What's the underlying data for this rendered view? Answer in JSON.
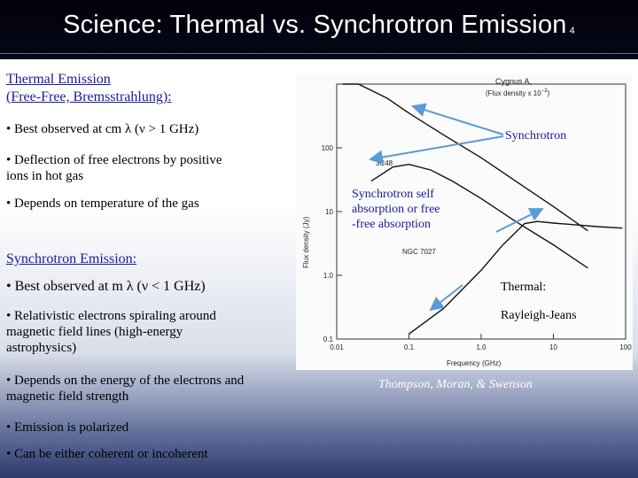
{
  "slide": {
    "title": "Science: Thermal vs. Synchrotron Emission",
    "page_number": "4"
  },
  "thermal": {
    "heading_line1": "Thermal Emission",
    "heading_line2": "(Free-Free, Bremsstrahlung):",
    "bullets": [
      "• Best observed at cm λ (ν > 1 GHz)",
      "• Deflection of  free electrons by positive",
      "ions in hot gas",
      "• Depends on temperature of the gas"
    ]
  },
  "synchrotron": {
    "heading": "Synchrotron Emission:",
    "bullets": [
      "• Best observed at m λ (ν < 1 GHz)",
      "• Relativistic electrons spiraling around",
      "magnetic field lines (high-energy",
      "astrophysics)",
      "• Depends on the energy of the electrons and",
      "magnetic field strength",
      "• Emission is polarized",
      "• Can be either coherent or incoherent"
    ]
  },
  "annotations": {
    "synchrotron": "Synchrotron",
    "self_absorption_1": "Synchrotron  self",
    "self_absorption_2": "absorption or free",
    "self_absorption_3": "-free absorption",
    "thermal": "Thermal:",
    "rayleigh": "Rayleigh-Jeans",
    "credit": "Thompson, Moran, & Swenson"
  },
  "chart_data": {
    "type": "line",
    "xlabel": "Frequency (GHz)",
    "ylabel": "Flux density (Jy)",
    "x_scale": "log",
    "y_scale": "log",
    "xlim": [
      0.01,
      100
    ],
    "ylim": [
      0.1,
      1000
    ],
    "x_ticks": [
      "0.01",
      "0.1",
      "1.0",
      "10",
      "100"
    ],
    "y_ticks": [
      "100",
      "10",
      "1.0",
      "0.1"
    ],
    "legend_note_1": "Cygnus A,",
    "legend_note_2": "(Flux density  x  10",
    "legend_note_exp": "−2",
    "legend_note_end": ")",
    "series": [
      {
        "name": "Cygnus A",
        "x": [
          0.012,
          0.02,
          0.05,
          0.1,
          0.3,
          1,
          3,
          10,
          30
        ],
        "y": [
          1500,
          1000,
          600,
          350,
          160,
          70,
          30,
          12,
          5
        ]
      },
      {
        "name": "3C48",
        "x": [
          0.03,
          0.06,
          0.1,
          0.2,
          0.4,
          1,
          3,
          10,
          30
        ],
        "y": [
          30,
          50,
          55,
          45,
          30,
          16,
          7,
          3,
          1.3
        ]
      },
      {
        "name": "NGC 7027",
        "x": [
          0.1,
          0.3,
          1,
          2,
          4,
          6,
          10,
          20,
          40,
          90
        ],
        "y": [
          0.12,
          0.3,
          1.2,
          3,
          6.5,
          7,
          6.6,
          6.2,
          5.8,
          5.5
        ]
      }
    ]
  }
}
